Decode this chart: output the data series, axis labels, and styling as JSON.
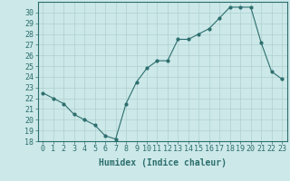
{
  "x": [
    0,
    1,
    2,
    3,
    4,
    5,
    6,
    7,
    8,
    9,
    10,
    11,
    12,
    13,
    14,
    15,
    16,
    17,
    18,
    19,
    20,
    21,
    22,
    23
  ],
  "y": [
    22.5,
    22.0,
    21.5,
    20.5,
    20.0,
    19.5,
    18.5,
    18.2,
    21.5,
    23.5,
    24.8,
    25.5,
    25.5,
    27.5,
    27.5,
    28.0,
    28.5,
    29.5,
    30.5,
    30.5,
    30.5,
    27.2,
    24.5,
    23.8
  ],
  "line_color": "#2d6e6e",
  "marker": "o",
  "marker_size": 2,
  "bg_color": "#cce8e8",
  "grid_color": "#aed0d0",
  "xlabel": "Humidex (Indice chaleur)",
  "ylim": [
    18,
    31
  ],
  "xlim": [
    -0.5,
    23.5
  ],
  "yticks": [
    18,
    19,
    20,
    21,
    22,
    23,
    24,
    25,
    26,
    27,
    28,
    29,
    30
  ],
  "xticks": [
    0,
    1,
    2,
    3,
    4,
    5,
    6,
    7,
    8,
    9,
    10,
    11,
    12,
    13,
    14,
    15,
    16,
    17,
    18,
    19,
    20,
    21,
    22,
    23
  ],
  "tick_label_fontsize": 6,
  "xlabel_fontsize": 7
}
